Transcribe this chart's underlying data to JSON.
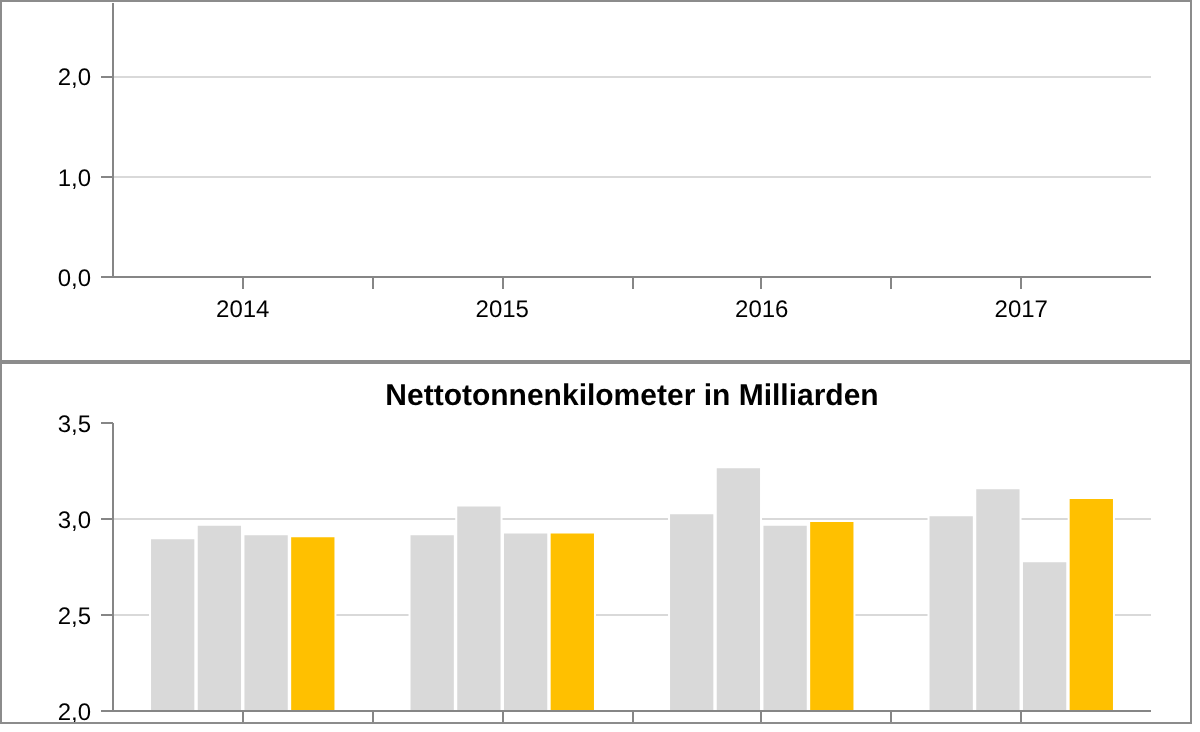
{
  "chart_data": [
    {
      "type": "bar",
      "categories": [
        "2014",
        "2015",
        "2016",
        "2017"
      ],
      "ylim": [
        0,
        2.73
      ],
      "yticks": [
        {
          "value": 0,
          "label": "0,0"
        },
        {
          "value": 1,
          "label": "1,0"
        },
        {
          "value": 2,
          "label": "2,0"
        }
      ],
      "grid": "y",
      "series": [
        {
          "color": "#d9d9d9",
          "values": [
            null,
            null,
            null,
            null
          ]
        },
        {
          "color": "#d9d9d9",
          "values": [
            null,
            null,
            null,
            null
          ]
        },
        {
          "color": "#d9d9d9",
          "values": [
            null,
            null,
            null,
            null
          ]
        },
        {
          "color": "#ffc000",
          "values": [
            null,
            null,
            null,
            null
          ]
        }
      ]
    },
    {
      "type": "bar",
      "title": "Nettotonnenkilometer in Milliarden",
      "categories": [
        null,
        null,
        null,
        null
      ],
      "ylim": [
        2.0,
        3.5
      ],
      "yticks": [
        {
          "value": 2.0,
          "label": "2,0"
        },
        {
          "value": 2.5,
          "label": "2,5"
        },
        {
          "value": 3.0,
          "label": "3,0"
        },
        {
          "value": 3.5,
          "label": "3,5"
        }
      ],
      "grid": "y",
      "tick_labels": "y",
      "series": [
        {
          "color": "#d9d9d9",
          "values": [
            2.9,
            2.92,
            3.03,
            3.02
          ]
        },
        {
          "color": "#d9d9d9",
          "values": [
            2.97,
            3.07,
            3.27,
            3.16
          ]
        },
        {
          "color": "#d9d9d9",
          "values": [
            2.92,
            2.93,
            2.97,
            2.78
          ]
        },
        {
          "color": "#ffc000",
          "values": [
            2.91,
            2.93,
            2.99,
            3.11
          ]
        }
      ]
    }
  ]
}
